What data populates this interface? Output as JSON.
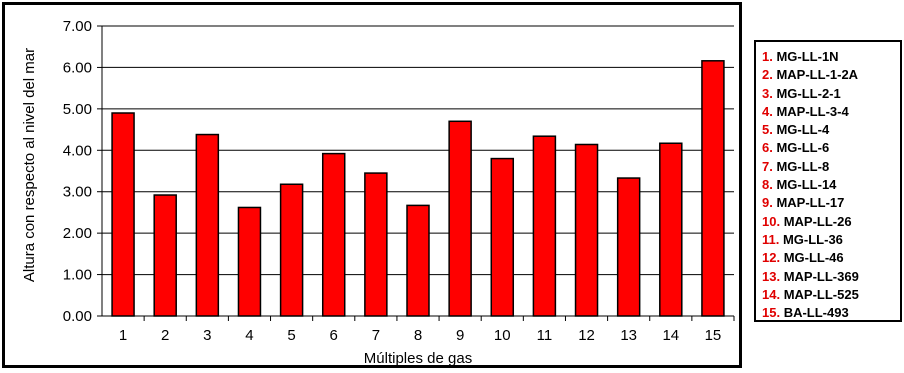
{
  "chart_data": {
    "type": "bar",
    "categories": [
      "1",
      "2",
      "3",
      "4",
      "5",
      "6",
      "7",
      "8",
      "9",
      "10",
      "11",
      "12",
      "13",
      "14",
      "15"
    ],
    "values": [
      4.9,
      2.92,
      4.38,
      2.62,
      3.18,
      3.92,
      3.45,
      2.67,
      4.7,
      3.8,
      4.34,
      4.14,
      3.33,
      4.17,
      6.16
    ],
    "xlabel": "Múltiples de gas",
    "ylabel": "Altura con respecto al nivel del mar",
    "ylim": [
      0,
      7
    ],
    "yticks": [
      "0.00",
      "1.00",
      "2.00",
      "3.00",
      "4.00",
      "5.00",
      "6.00",
      "7.00"
    ],
    "grid": true,
    "bar_color": "#ff0000",
    "legend_position": "right",
    "legend": [
      {
        "num": "1.",
        "label": "MG-LL-1N"
      },
      {
        "num": "2.",
        "label": "MAP-LL-1-2A"
      },
      {
        "num": "3.",
        "label": "MG-LL-2-1"
      },
      {
        "num": "4.",
        "label": "MAP-LL-3-4"
      },
      {
        "num": "5.",
        "label": "MG-LL-4"
      },
      {
        "num": "6.",
        "label": "MG-LL-6"
      },
      {
        "num": "7.",
        "label": "MG-LL-8"
      },
      {
        "num": "8.",
        "label": "MG-LL-14"
      },
      {
        "num": "9.",
        "label": "MAP-LL-17"
      },
      {
        "num": "10.",
        "label": "MAP-LL-26"
      },
      {
        "num": "11.",
        "label": "MG-LL-36"
      },
      {
        "num": "12.",
        "label": "MG-LL-46"
      },
      {
        "num": "13.",
        "label": "MAP-LL-369"
      },
      {
        "num": "14.",
        "label": "MAP-LL-525"
      },
      {
        "num": "15.",
        "label": "BA-LL-493"
      }
    ]
  }
}
